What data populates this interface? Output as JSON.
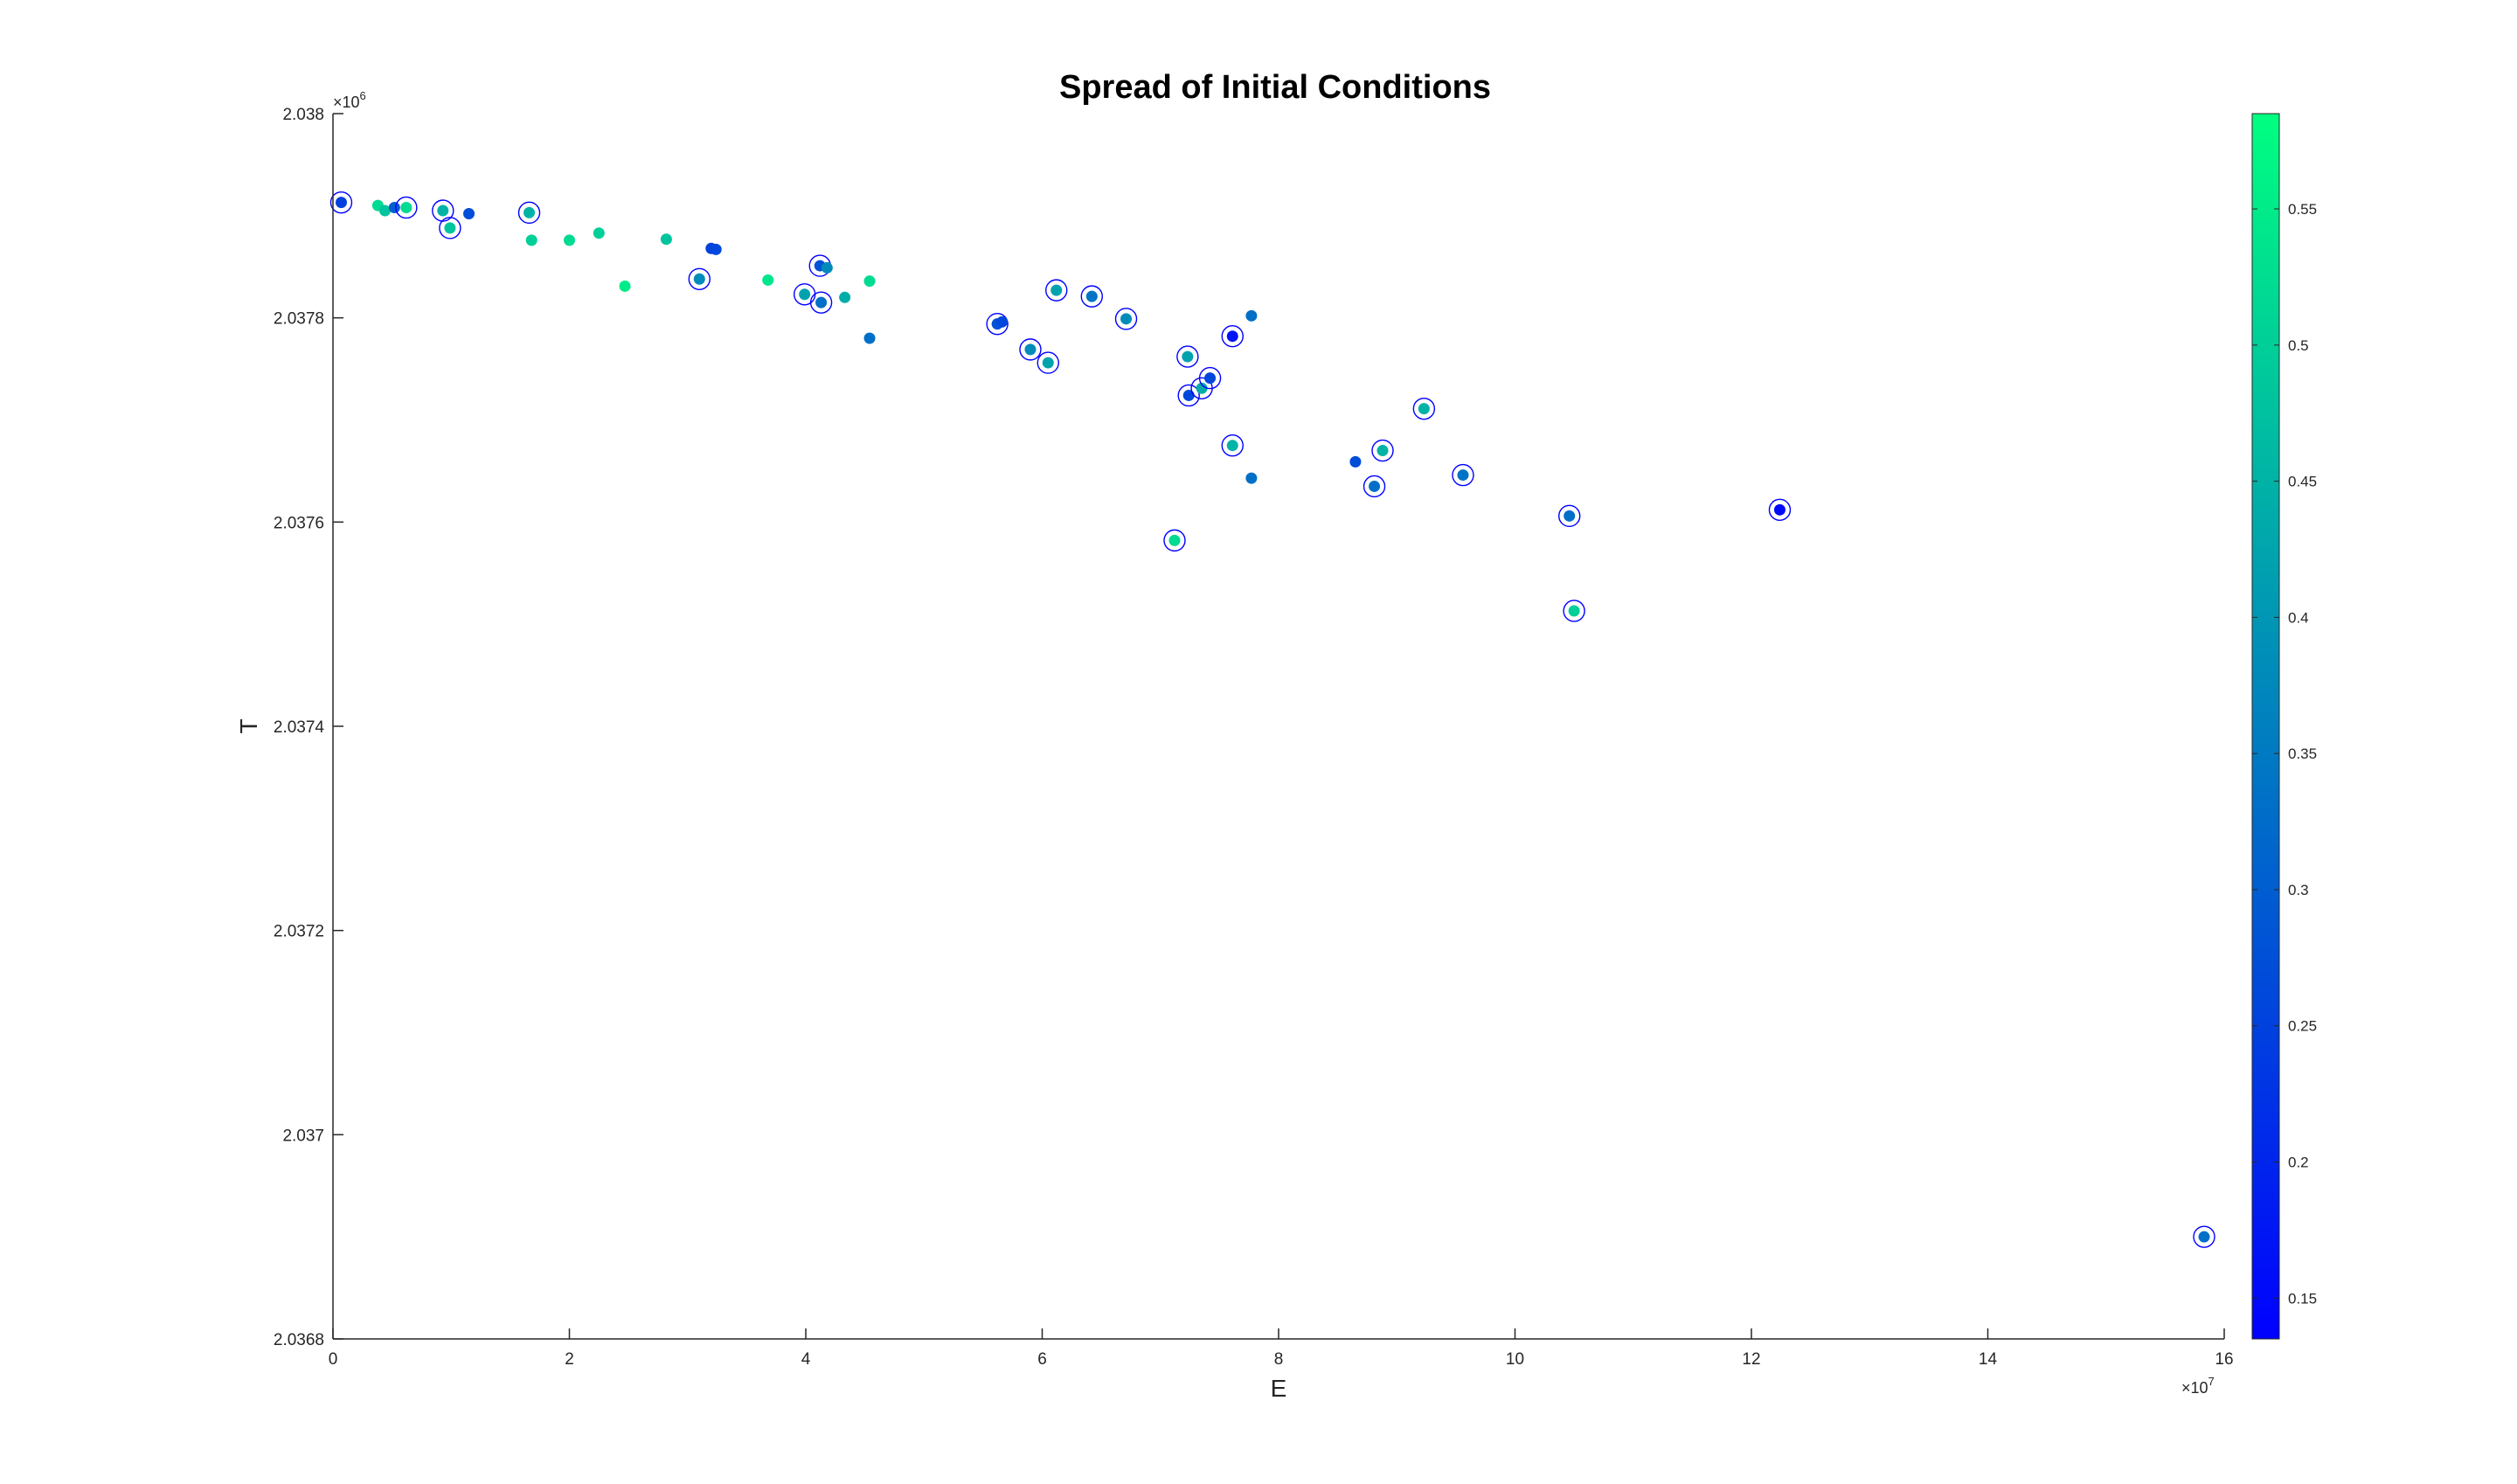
{
  "chart_data": {
    "type": "scatter",
    "title": "Spread of Initial Conditions",
    "xlabel": "E",
    "ylabel": "T",
    "x_exponent_label": "×10",
    "x_exponent_power": "7",
    "y_exponent_label": "×10",
    "y_exponent_power": "6",
    "xlim": [
      0,
      16
    ],
    "ylim": [
      2.0368,
      2.038
    ],
    "x_ticks": [
      0,
      2,
      4,
      6,
      8,
      10,
      12,
      14,
      16
    ],
    "x_tick_labels": [
      "0",
      "2",
      "4",
      "6",
      "8",
      "10",
      "12",
      "14",
      "16"
    ],
    "y_ticks": [
      2.0368,
      2.037,
      2.0372,
      2.0374,
      2.0376,
      2.0378,
      2.038
    ],
    "y_tick_labels": [
      "2.0368",
      "2.037",
      "2.0372",
      "2.0374",
      "2.0376",
      "2.0378",
      "2.038"
    ],
    "grid": false,
    "colorbar": {
      "limits": [
        0.135,
        0.585
      ],
      "ticks": [
        0.15,
        0.2,
        0.25,
        0.3,
        0.35,
        0.4,
        0.45,
        0.5,
        0.55
      ],
      "tick_labels": [
        "0.15",
        "0.2",
        "0.25",
        "0.3",
        "0.35",
        "0.4",
        "0.45",
        "0.5",
        "0.55"
      ],
      "colormap": "winter",
      "color_low": "#0000ff",
      "color_high": "#00ff80"
    },
    "ring_color": "#0000ff",
    "points": [
      {
        "x": 0.07,
        "y": 2.037913,
        "c": 0.25,
        "ring": true
      },
      {
        "x": 0.38,
        "y": 2.03791,
        "c": 0.52,
        "ring": false
      },
      {
        "x": 0.44,
        "y": 2.037905,
        "c": 0.48,
        "ring": false
      },
      {
        "x": 0.52,
        "y": 2.037908,
        "c": 0.3,
        "ring": false
      },
      {
        "x": 0.62,
        "y": 2.037908,
        "c": 0.52,
        "ring": true
      },
      {
        "x": 0.93,
        "y": 2.037905,
        "c": 0.45,
        "ring": true
      },
      {
        "x": 0.99,
        "y": 2.037888,
        "c": 0.48,
        "ring": true
      },
      {
        "x": 1.15,
        "y": 2.037902,
        "c": 0.27,
        "ring": false
      },
      {
        "x": 1.66,
        "y": 2.037903,
        "c": 0.45,
        "ring": true
      },
      {
        "x": 1.68,
        "y": 2.037876,
        "c": 0.5,
        "ring": false
      },
      {
        "x": 2.0,
        "y": 2.037876,
        "c": 0.52,
        "ring": false
      },
      {
        "x": 2.25,
        "y": 2.037883,
        "c": 0.5,
        "ring": false
      },
      {
        "x": 2.47,
        "y": 2.037831,
        "c": 0.55,
        "ring": false
      },
      {
        "x": 2.82,
        "y": 2.037877,
        "c": 0.48,
        "ring": false
      },
      {
        "x": 3.1,
        "y": 2.037838,
        "c": 0.38,
        "ring": true
      },
      {
        "x": 3.2,
        "y": 2.037868,
        "c": 0.25,
        "ring": false
      },
      {
        "x": 3.24,
        "y": 2.037867,
        "c": 0.26,
        "ring": false
      },
      {
        "x": 3.68,
        "y": 2.037837,
        "c": 0.54,
        "ring": false
      },
      {
        "x": 3.99,
        "y": 2.037823,
        "c": 0.42,
        "ring": true
      },
      {
        "x": 4.12,
        "y": 2.037851,
        "c": 0.28,
        "ring": true
      },
      {
        "x": 4.13,
        "y": 2.037815,
        "c": 0.33,
        "ring": true
      },
      {
        "x": 4.18,
        "y": 2.037849,
        "c": 0.38,
        "ring": false
      },
      {
        "x": 4.33,
        "y": 2.03782,
        "c": 0.44,
        "ring": false
      },
      {
        "x": 4.54,
        "y": 2.037836,
        "c": 0.52,
        "ring": false
      },
      {
        "x": 4.54,
        "y": 2.03778,
        "c": 0.33,
        "ring": false
      },
      {
        "x": 5.62,
        "y": 2.037794,
        "c": 0.28,
        "ring": true
      },
      {
        "x": 5.66,
        "y": 2.037796,
        "c": 0.26,
        "ring": false
      },
      {
        "x": 5.9,
        "y": 2.037769,
        "c": 0.38,
        "ring": true
      },
      {
        "x": 6.05,
        "y": 2.037756,
        "c": 0.42,
        "ring": true
      },
      {
        "x": 6.12,
        "y": 2.037827,
        "c": 0.42,
        "ring": true
      },
      {
        "x": 6.42,
        "y": 2.037821,
        "c": 0.34,
        "ring": true
      },
      {
        "x": 6.71,
        "y": 2.037799,
        "c": 0.38,
        "ring": true
      },
      {
        "x": 7.12,
        "y": 2.037582,
        "c": 0.52,
        "ring": true
      },
      {
        "x": 7.23,
        "y": 2.037762,
        "c": 0.42,
        "ring": true
      },
      {
        "x": 7.24,
        "y": 2.037724,
        "c": 0.26,
        "ring": true
      },
      {
        "x": 7.35,
        "y": 2.037731,
        "c": 0.44,
        "ring": true
      },
      {
        "x": 7.42,
        "y": 2.037741,
        "c": 0.26,
        "ring": true
      },
      {
        "x": 7.61,
        "y": 2.037675,
        "c": 0.45,
        "ring": true
      },
      {
        "x": 7.61,
        "y": 2.037782,
        "c": 0.17,
        "ring": true
      },
      {
        "x": 7.77,
        "y": 2.037802,
        "c": 0.33,
        "ring": false
      },
      {
        "x": 7.77,
        "y": 2.037643,
        "c": 0.33,
        "ring": false
      },
      {
        "x": 8.65,
        "y": 2.037659,
        "c": 0.27,
        "ring": false
      },
      {
        "x": 8.81,
        "y": 2.037635,
        "c": 0.33,
        "ring": true
      },
      {
        "x": 8.88,
        "y": 2.03767,
        "c": 0.45,
        "ring": true
      },
      {
        "x": 9.23,
        "y": 2.037711,
        "c": 0.45,
        "ring": true
      },
      {
        "x": 9.56,
        "y": 2.037646,
        "c": 0.34,
        "ring": true
      },
      {
        "x": 10.46,
        "y": 2.037606,
        "c": 0.33,
        "ring": true
      },
      {
        "x": 10.5,
        "y": 2.037513,
        "c": 0.5,
        "ring": true
      },
      {
        "x": 12.24,
        "y": 2.037612,
        "c": 0.15,
        "ring": true
      },
      {
        "x": 15.83,
        "y": 2.0369,
        "c": 0.33,
        "ring": true
      }
    ]
  }
}
